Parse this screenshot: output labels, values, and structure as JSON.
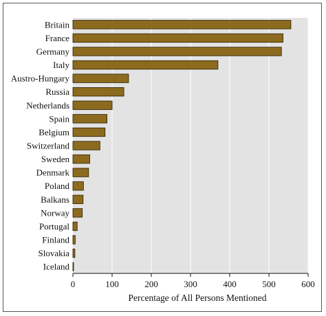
{
  "chart_data": {
    "type": "bar",
    "orientation": "horizontal",
    "categories": [
      "Britain",
      "France",
      "Germany",
      "Italy",
      "Austro-Hungary",
      "Russia",
      "Netherlands",
      "Spain",
      "Belgium",
      "Switzerland",
      "Sweden",
      "Denmark",
      "Poland",
      "Balkans",
      "Norway",
      "Portugal",
      "Finland",
      "Slovakia",
      "Iceland"
    ],
    "values": [
      556,
      536,
      532,
      370,
      142,
      130,
      100,
      87,
      82,
      69,
      43,
      40,
      27,
      26,
      24,
      11,
      6,
      5,
      1
    ],
    "xlabel": "Percentage of All Persons Mentioned",
    "ylabel": "",
    "xlim": [
      0,
      600
    ],
    "xticks": [
      0,
      100,
      200,
      300,
      400,
      500,
      600
    ],
    "grid": true,
    "colors": {
      "bar": "#8c6b1e",
      "bar_edge": "#2a1d05",
      "plot_bg": "#e3e3e3",
      "grid": "#ffffff"
    }
  }
}
